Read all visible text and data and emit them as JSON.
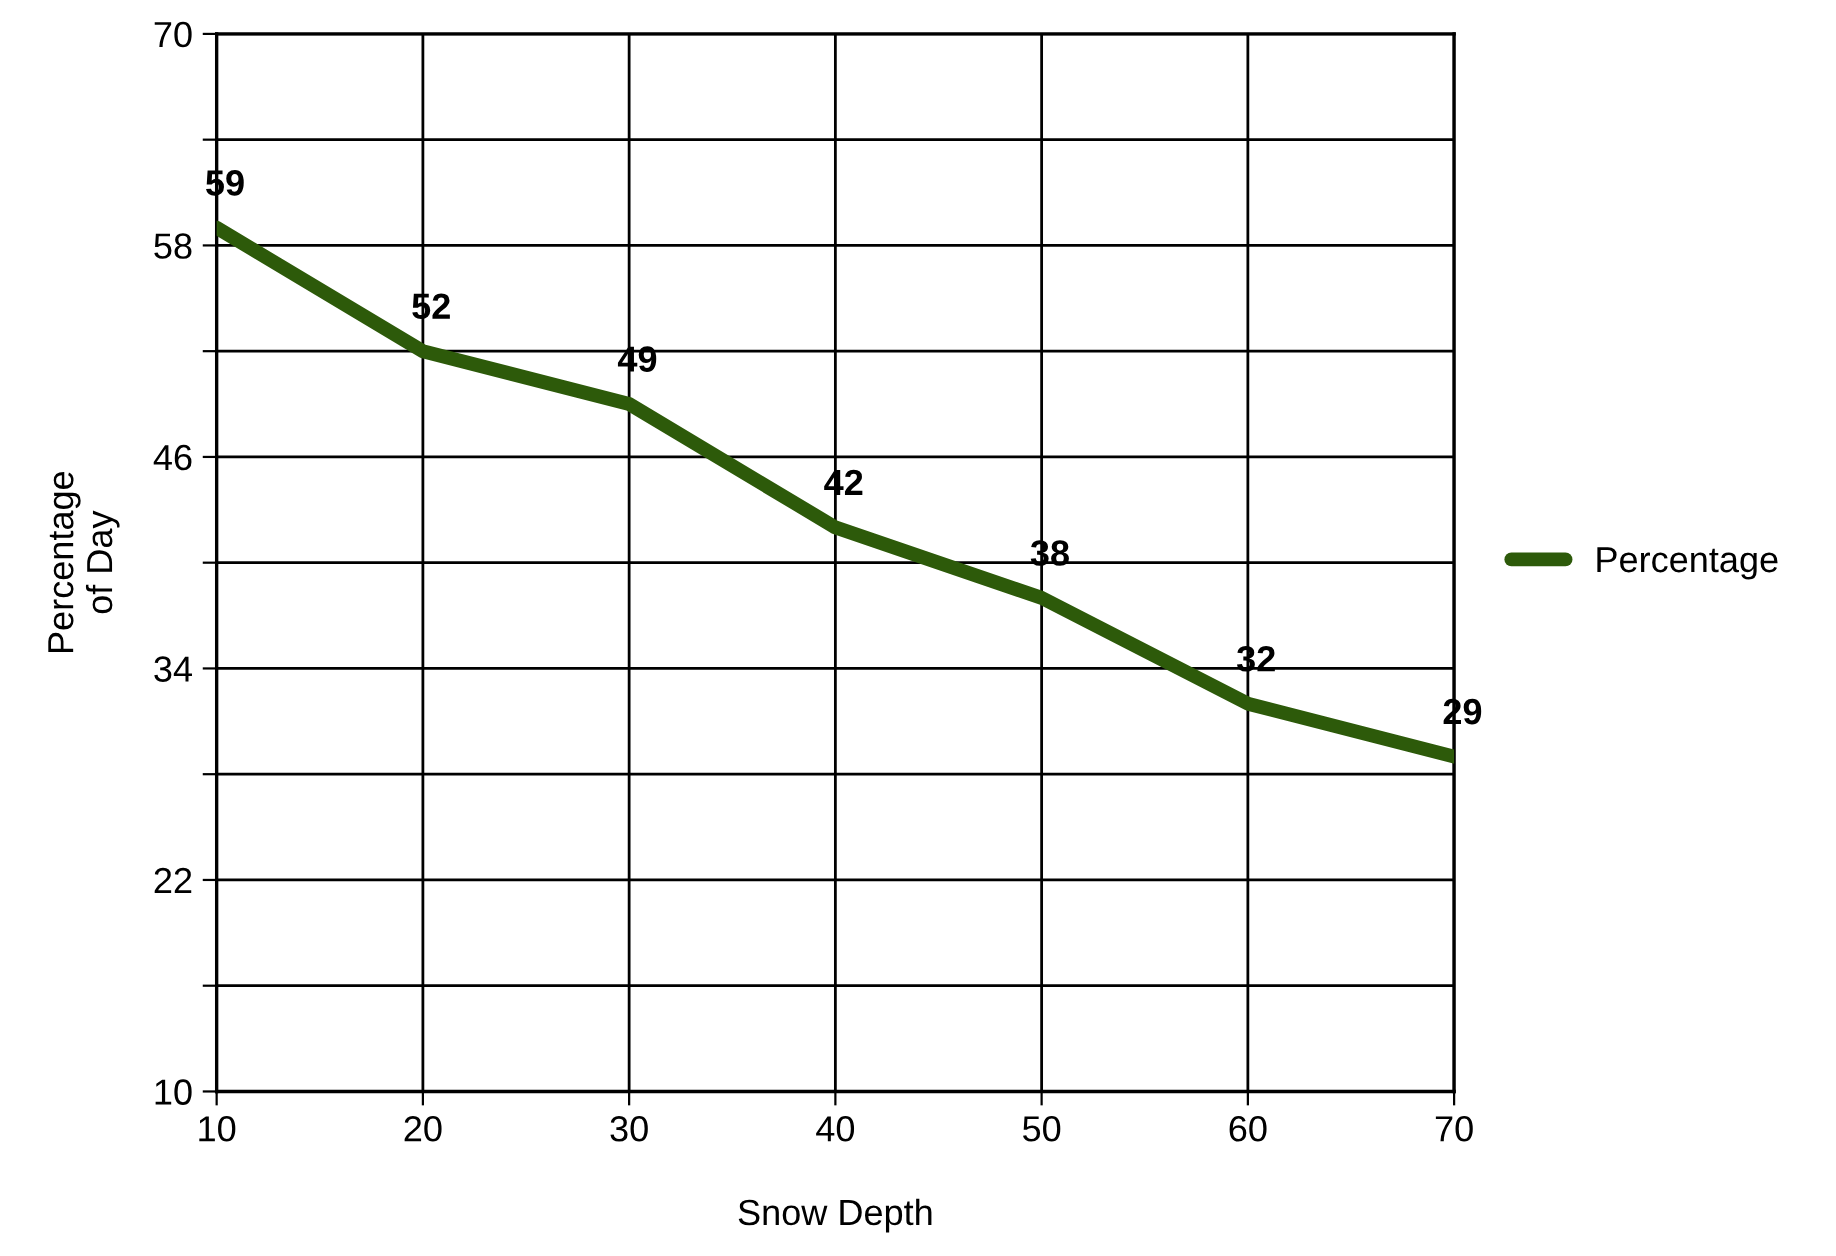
{
  "chart_data": {
    "type": "line",
    "xlabel": "Snow Depth",
    "ylabel": "Percentage\nof Day",
    "x": [
      10,
      20,
      30,
      40,
      50,
      60,
      70
    ],
    "series": [
      {
        "name": "Percentage",
        "color": "#2d5a0a",
        "values": [
          59,
          52,
          49,
          42,
          38,
          32,
          29
        ]
      }
    ],
    "xlim": [
      10,
      70
    ],
    "xticks": [
      10,
      20,
      30,
      40,
      50,
      60,
      70
    ],
    "ylim": [
      10,
      70
    ],
    "yticks": [
      10,
      {
        "value": 16,
        "label": null
      },
      22,
      {
        "value": 28,
        "label": null
      },
      34,
      {
        "value": 40,
        "label": null
      },
      46,
      {
        "value": 52,
        "label": null
      },
      58,
      {
        "value": 64,
        "label": null
      },
      70
    ],
    "grid": true,
    "legend": "right",
    "data_labels": true,
    "marker": "none",
    "line_style": "solid"
  }
}
